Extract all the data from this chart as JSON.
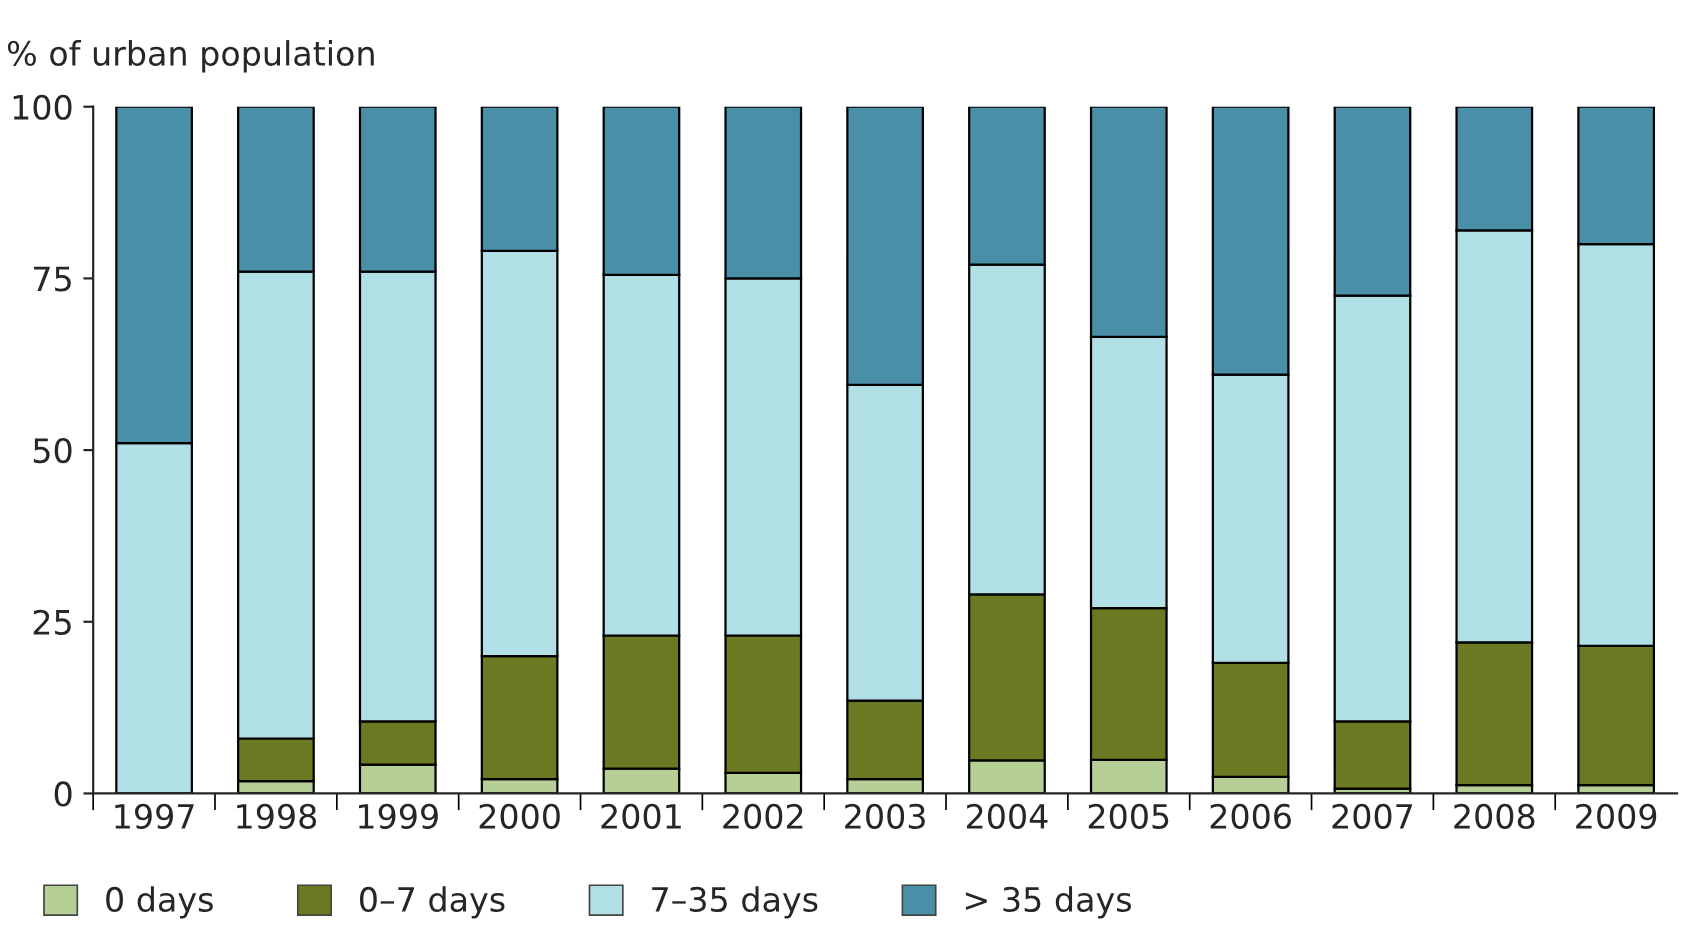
{
  "chart_data": {
    "type": "bar",
    "stacked": true,
    "ylabel": "% of urban population",
    "categories": [
      "1997",
      "1998",
      "1999",
      "2000",
      "2001",
      "2002",
      "2003",
      "2004",
      "2005",
      "2006",
      "2007",
      "2008",
      "2009"
    ],
    "series": [
      {
        "name": "0 days",
        "color": "#b5cf96",
        "values": [
          0,
          1.8,
          4.2,
          2.1,
          3.6,
          3.0,
          2.1,
          4.8,
          4.9,
          2.4,
          0.7,
          1.2,
          1.2
        ]
      },
      {
        "name": "0–7 days",
        "color": "#6b7a22",
        "values": [
          0,
          6.2,
          6.3,
          17.9,
          19.4,
          20,
          11.4,
          24.2,
          22.1,
          16.6,
          9.8,
          20.8,
          20.3
        ]
      },
      {
        "name": "7–35 days",
        "color": "#b0e0e6",
        "values": [
          51,
          68,
          65.5,
          59,
          52.5,
          52,
          46,
          48,
          39.5,
          42,
          62,
          60,
          58.5
        ]
      },
      {
        "name": "> 35 days",
        "color": "#4a8fa8",
        "values": [
          49,
          24,
          24,
          21,
          24.5,
          25,
          40.5,
          23,
          33.5,
          39,
          27.5,
          18,
          20
        ]
      }
    ],
    "ylim": [
      0,
      100
    ],
    "yticks": [
      0,
      25,
      50,
      75,
      100
    ],
    "grid": false,
    "legend": "bottom"
  }
}
